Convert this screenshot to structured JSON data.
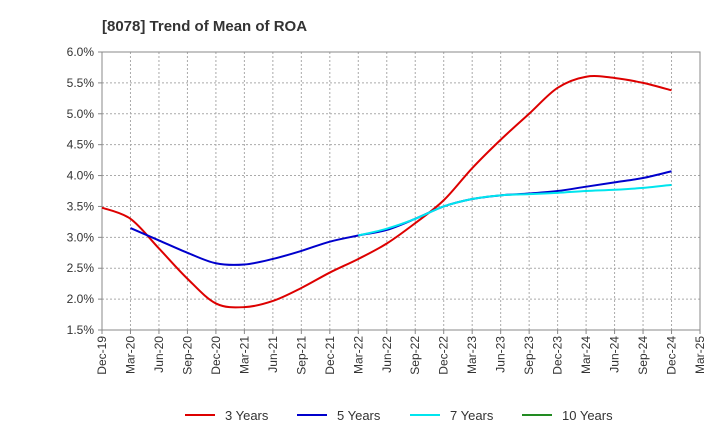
{
  "chart_data": {
    "type": "line",
    "title": "[8078]  Trend of Mean of ROA",
    "xlabel": "",
    "ylabel": "",
    "ylim": [
      1.5,
      6.0
    ],
    "y_ticks": [
      "6.0%",
      "5.5%",
      "5.0%",
      "4.5%",
      "4.0%",
      "3.5%",
      "3.0%",
      "2.5%",
      "2.0%",
      "1.5%"
    ],
    "y_tick_values": [
      6.0,
      5.5,
      5.0,
      4.5,
      4.0,
      3.5,
      3.0,
      2.5,
      2.0,
      1.5
    ],
    "x_ticks": [
      "Dec-19",
      "Mar-20",
      "Jun-20",
      "Sep-20",
      "Dec-20",
      "Mar-21",
      "Jun-21",
      "Sep-21",
      "Dec-21",
      "Mar-22",
      "Jun-22",
      "Sep-22",
      "Dec-22",
      "Mar-23",
      "Jun-23",
      "Sep-23",
      "Dec-23",
      "Mar-24",
      "Jun-24",
      "Sep-24",
      "Dec-24",
      "Mar-25"
    ],
    "grid": true,
    "series": [
      {
        "name": "3 Years",
        "color": "#dd0000",
        "start_index": 0,
        "values": [
          3.48,
          3.3,
          2.82,
          2.33,
          1.93,
          1.87,
          1.97,
          2.18,
          2.43,
          2.65,
          2.9,
          3.23,
          3.6,
          4.12,
          4.58,
          5.0,
          5.42,
          5.6,
          5.58,
          5.5,
          5.38
        ]
      },
      {
        "name": "5 Years",
        "color": "#0000cc",
        "start_index": 1,
        "values": [
          3.15,
          2.95,
          2.75,
          2.58,
          2.56,
          2.65,
          2.78,
          2.93,
          3.03,
          3.12,
          3.3,
          3.5,
          3.62,
          3.68,
          3.71,
          3.75,
          3.82,
          3.89,
          3.96,
          4.07
        ]
      },
      {
        "name": "7 Years",
        "color": "#00e5ee",
        "start_index": 9,
        "values": [
          3.03,
          3.14,
          3.3,
          3.5,
          3.62,
          3.68,
          3.7,
          3.72,
          3.75,
          3.77,
          3.8,
          3.85
        ]
      },
      {
        "name": "10 Years",
        "color": "#228b22",
        "start_index": 0,
        "values": []
      }
    ],
    "legend_position": "bottom"
  }
}
